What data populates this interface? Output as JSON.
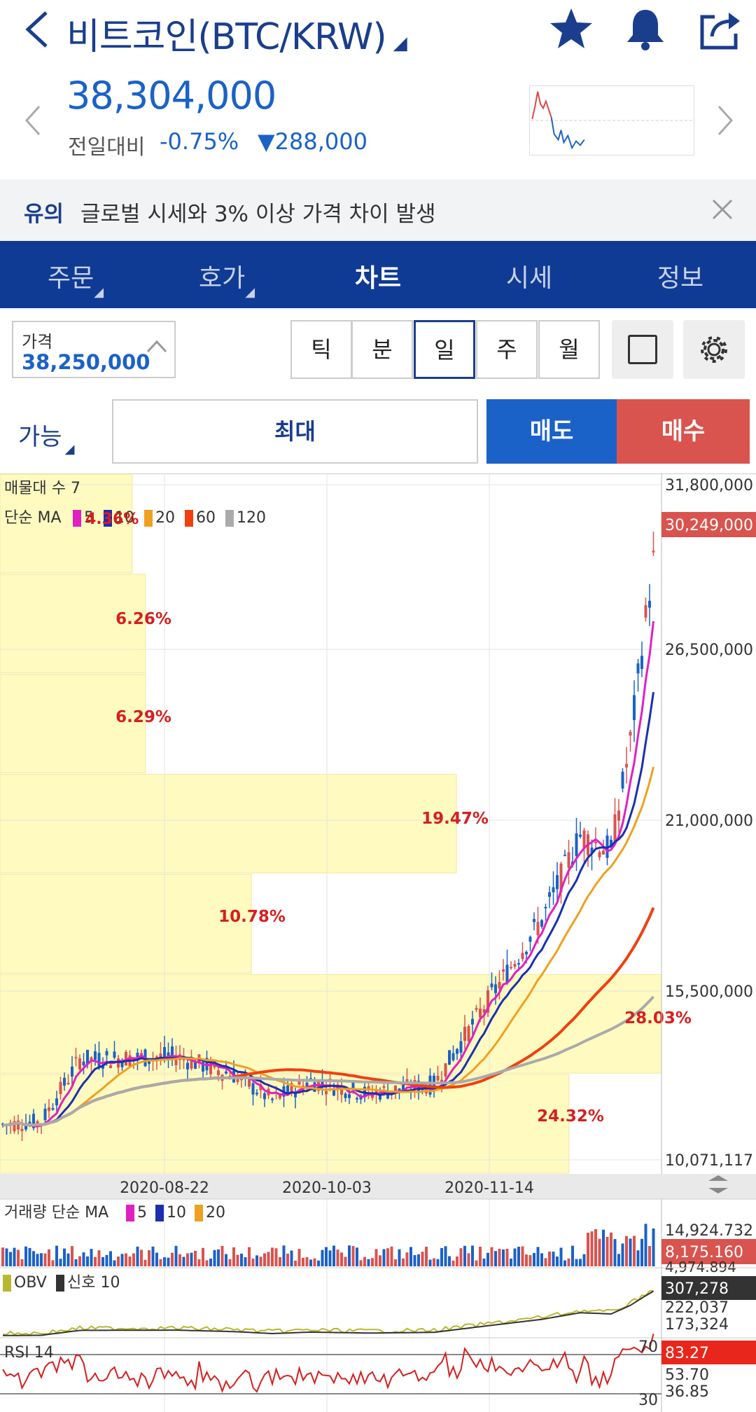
{
  "header": {
    "title": "비트코인(BTC/KRW)",
    "price": "38,304,000",
    "change_label": "전일대비",
    "change_pct": "-0.75%",
    "change_amt": "▼288,000"
  },
  "notice": {
    "tag": "유의",
    "text": "글로벌 시세와 3% 이상 가격 차이 발생"
  },
  "tabs": [
    "주문",
    "호가",
    "차트",
    "시세",
    "정보"
  ],
  "price_box": {
    "label": "가격",
    "value": "38,250,000"
  },
  "periods": [
    "틱",
    "분",
    "일",
    "주",
    "월"
  ],
  "order": {
    "available": "가능",
    "max": "최대",
    "sell": "매도",
    "buy": "매수"
  },
  "colors": {
    "navy": "#0f3b94",
    "blue": "#1a62c8",
    "red": "#d9534f",
    "ma5": "#e020c0",
    "ma10": "#1c2fb0",
    "ma20": "#f0a020",
    "ma60": "#f04010",
    "ma120": "#aaaaaa"
  },
  "chart_data": {
    "type": "candlestick",
    "indicator_label": "매물대 수 7",
    "ma_label": "단순 MA",
    "ma_periods": [
      "5",
      "10",
      "20",
      "60",
      "120"
    ],
    "ma_overlap_pct": "4.36%",
    "y_ticks": [
      "31,800,000",
      "26,500,000",
      "21,000,000",
      "15,500,000",
      "10,071,117"
    ],
    "current_price_label": "30,249,000",
    "x_ticks": [
      "2020-08-22",
      "2020-10-03",
      "2020-11-14"
    ],
    "volume_profile": [
      {
        "pct": "",
        "width": 0.2
      },
      {
        "pct": "6.26%",
        "width": 0.22
      },
      {
        "pct": "6.29%",
        "width": 0.22
      },
      {
        "pct": "19.47%",
        "width": 0.69
      },
      {
        "pct": "10.78%",
        "width": 0.38
      },
      {
        "pct": "28.03%",
        "width": 1.0
      },
      {
        "pct": "24.32%",
        "width": 0.86
      }
    ],
    "volume_panel": {
      "label": "거래량 단순 MA",
      "periods": [
        "5",
        "10",
        "20"
      ],
      "ticks": [
        "14,924.732",
        "8,175.160",
        "4,974.894"
      ]
    },
    "obv_panel": {
      "label": "OBV",
      "signal_label": "신호 10",
      "current": "307,278",
      "ticks": [
        "222,037",
        "173,324"
      ]
    },
    "rsi_panel": {
      "label": "RSI 14",
      "current": "83.27",
      "ticks": [
        "53.70",
        "36.85"
      ],
      "bands": [
        "70",
        "30"
      ]
    }
  }
}
